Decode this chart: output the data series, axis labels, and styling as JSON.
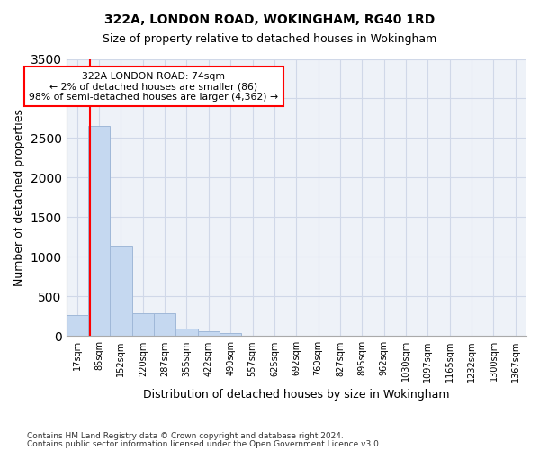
{
  "title": "322A, LONDON ROAD, WOKINGHAM, RG40 1RD",
  "subtitle": "Size of property relative to detached houses in Wokingham",
  "xlabel": "Distribution of detached houses by size in Wokingham",
  "ylabel": "Number of detached properties",
  "bar_color": "#c5d8f0",
  "bar_edge_color": "#a0b8d8",
  "grid_color": "#d0d8e8",
  "background_color": "#eef2f8",
  "ylim": [
    0,
    3500
  ],
  "yticks": [
    0,
    500,
    1000,
    1500,
    2000,
    2500,
    3000,
    3500
  ],
  "bin_labels": [
    "17sqm",
    "85sqm",
    "152sqm",
    "220sqm",
    "287sqm",
    "355sqm",
    "422sqm",
    "490sqm",
    "557sqm",
    "625sqm",
    "692sqm",
    "760sqm",
    "827sqm",
    "895sqm",
    "962sqm",
    "1030sqm",
    "1097sqm",
    "1165sqm",
    "1232sqm",
    "1300sqm",
    "1367sqm"
  ],
  "bar_heights": [
    270,
    2650,
    1140,
    285,
    285,
    100,
    55,
    38,
    0,
    0,
    0,
    0,
    0,
    0,
    0,
    0,
    0,
    0,
    0,
    0,
    0
  ],
  "annotation_text": "322A LONDON ROAD: 74sqm\n← 2% of detached houses are smaller (86)\n98% of semi-detached houses are larger (4,362) →",
  "property_line_x": 0.58,
  "footnote1": "Contains HM Land Registry data © Crown copyright and database right 2024.",
  "footnote2": "Contains public sector information licensed under the Open Government Licence v3.0."
}
